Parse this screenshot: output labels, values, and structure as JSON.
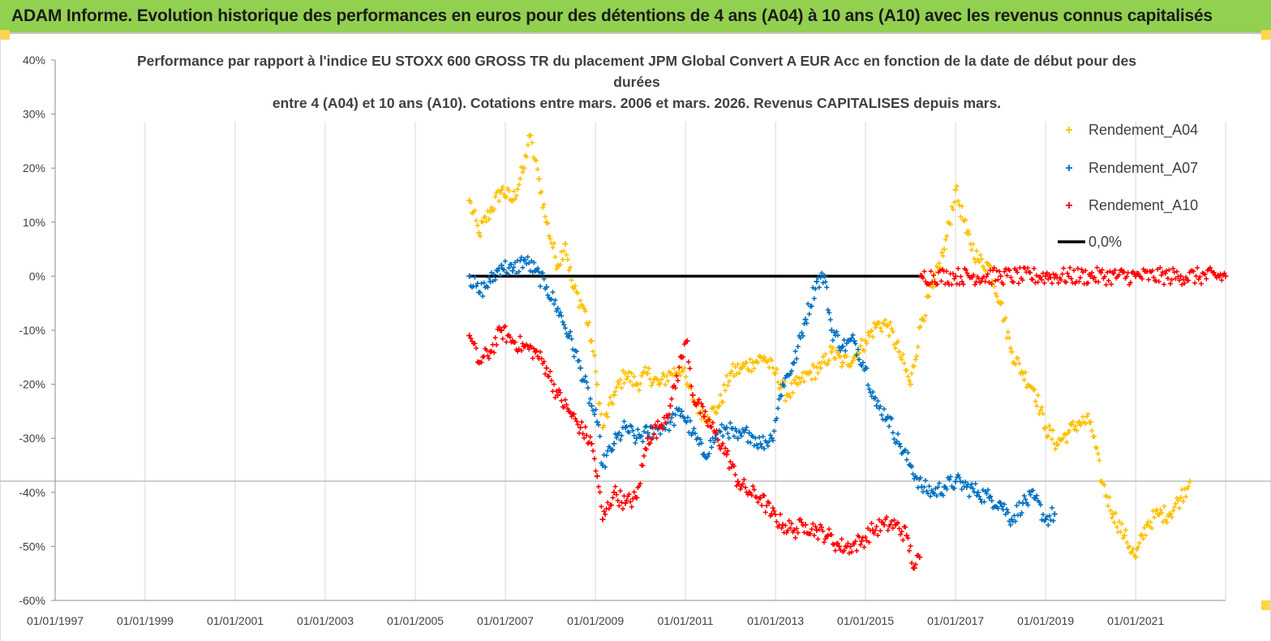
{
  "banner": {
    "title": "ADAM Informe. Evolution historique des performances en euros pour des détentions de 4 ans (A04) à 10 ans (A10) avec les revenus connus capitalisés"
  },
  "colors": {
    "banner_bg": "#92d050",
    "corner_marker": "#ffd54a",
    "A04": "#ffc000",
    "A07": "#0070c0",
    "A10": "#ff0000",
    "zero_line": "#000000",
    "gridline": "#d9d9d9"
  },
  "chart_data": {
    "type": "scatter",
    "title_lines": [
      "Performance par rapport à l'indice EU STOXX 600 GROSS TR  du placement JPM Global Convert A EUR Acc en fonction de la date de début pour des",
      "durées",
      "entre 4 (A04) et 10 ans (A10).  Cotations entre mars. 2006 et mars. 2026. Revenus CAPITALISES depuis mars."
    ],
    "xlabel": "",
    "ylabel": "",
    "x_type": "date",
    "xlim": [
      "1997-01-01",
      "2022-12-31"
    ],
    "ylim": [
      -60,
      40
    ],
    "x_tick_labels": [
      "01/01/1997",
      "01/01/1999",
      "01/01/2001",
      "01/01/2003",
      "01/01/2005",
      "01/01/2007",
      "01/01/2009",
      "01/01/2011",
      "01/01/2013",
      "01/01/2015",
      "01/01/2017",
      "01/01/2019",
      "01/01/2021"
    ],
    "y_ticks": [
      40,
      30,
      20,
      10,
      0,
      -10,
      -20,
      -30,
      -40,
      -50,
      -60
    ],
    "y_tick_labels": [
      "40%",
      "30%",
      "20%",
      "10%",
      "0%",
      "-10%",
      "-20%",
      "-30%",
      "-40%",
      "-50%",
      "-60%"
    ],
    "grid": {
      "vertical": true,
      "horizontal": false
    },
    "legend_position": "right",
    "legend": [
      "Rendement_A04",
      "Rendement_A07",
      "Rendement_A10",
      "0,0%"
    ],
    "series": [
      {
        "name": "Rendement_A04",
        "marker": "+",
        "points": [
          [
            "2006-03-15",
            14
          ],
          [
            "2006-06-01",
            8
          ],
          [
            "2006-09-01",
            12
          ],
          [
            "2006-12-01",
            16
          ],
          [
            "2007-03-01",
            14
          ],
          [
            "2007-06-01",
            20
          ],
          [
            "2007-07-15",
            26
          ],
          [
            "2007-10-01",
            18
          ],
          [
            "2007-12-01",
            10
          ],
          [
            "2008-03-01",
            2
          ],
          [
            "2008-05-01",
            6
          ],
          [
            "2008-07-01",
            -2
          ],
          [
            "2008-10-01",
            -6
          ],
          [
            "2008-12-01",
            -12
          ],
          [
            "2009-01-15",
            -20
          ],
          [
            "2009-03-01",
            -28
          ],
          [
            "2009-06-01",
            -22
          ],
          [
            "2009-09-01",
            -18
          ],
          [
            "2009-12-01",
            -20
          ],
          [
            "2010-03-01",
            -18
          ],
          [
            "2010-06-01",
            -20
          ],
          [
            "2010-09-01",
            -18
          ],
          [
            "2010-12-01",
            -17
          ],
          [
            "2011-01-15",
            -20
          ],
          [
            "2011-04-01",
            -24
          ],
          [
            "2011-07-01",
            -26
          ],
          [
            "2011-10-01",
            -24
          ],
          [
            "2012-01-01",
            -18
          ],
          [
            "2012-04-01",
            -17
          ],
          [
            "2012-07-01",
            -16
          ],
          [
            "2012-10-01",
            -15
          ],
          [
            "2013-01-01",
            -18
          ],
          [
            "2013-04-01",
            -22
          ],
          [
            "2013-07-01",
            -20
          ],
          [
            "2013-10-01",
            -18
          ],
          [
            "2014-01-01",
            -17
          ],
          [
            "2014-04-01",
            -14
          ],
          [
            "2014-07-01",
            -16
          ],
          [
            "2014-10-01",
            -15
          ],
          [
            "2015-01-01",
            -12
          ],
          [
            "2015-04-01",
            -9
          ],
          [
            "2015-07-01",
            -9
          ],
          [
            "2015-10-01",
            -14
          ],
          [
            "2016-01-01",
            -20
          ],
          [
            "2016-04-01",
            -8
          ],
          [
            "2016-07-01",
            -2
          ],
          [
            "2016-10-01",
            5
          ],
          [
            "2017-01-01",
            16
          ],
          [
            "2017-04-01",
            8
          ],
          [
            "2017-07-01",
            3
          ],
          [
            "2017-10-01",
            2
          ],
          [
            "2018-01-01",
            -5
          ],
          [
            "2018-04-01",
            -14
          ],
          [
            "2018-07-01",
            -18
          ],
          [
            "2018-10-01",
            -21
          ],
          [
            "2019-01-01",
            -28
          ],
          [
            "2019-04-01",
            -31
          ],
          [
            "2019-07-01",
            -29
          ],
          [
            "2019-10-01",
            -27
          ],
          [
            "2020-01-01",
            -27
          ],
          [
            "2020-04-01",
            -38
          ],
          [
            "2020-07-01",
            -44
          ],
          [
            "2020-10-01",
            -48
          ],
          [
            "2021-01-01",
            -52
          ],
          [
            "2021-04-01",
            -46
          ],
          [
            "2021-07-01",
            -44
          ],
          [
            "2021-10-01",
            -44
          ],
          [
            "2022-01-01",
            -41
          ],
          [
            "2022-03-15",
            -38
          ]
        ]
      },
      {
        "name": "Rendement_A07",
        "marker": "+",
        "points": [
          [
            "2006-03-15",
            0
          ],
          [
            "2006-06-01",
            -3
          ],
          [
            "2006-09-01",
            -1
          ],
          [
            "2006-12-01",
            2
          ],
          [
            "2007-03-01",
            1
          ],
          [
            "2007-06-01",
            3
          ],
          [
            "2007-09-01",
            1
          ],
          [
            "2007-12-01",
            -2
          ],
          [
            "2008-03-01",
            -6
          ],
          [
            "2008-06-01",
            -11
          ],
          [
            "2008-09-01",
            -17
          ],
          [
            "2008-12-01",
            -24
          ],
          [
            "2009-01-15",
            -27
          ],
          [
            "2009-03-01",
            -35
          ],
          [
            "2009-06-01",
            -31
          ],
          [
            "2009-09-01",
            -28
          ],
          [
            "2009-12-01",
            -30
          ],
          [
            "2010-03-01",
            -29
          ],
          [
            "2010-06-01",
            -28
          ],
          [
            "2010-09-01",
            -27
          ],
          [
            "2010-12-01",
            -25
          ],
          [
            "2011-03-01",
            -29
          ],
          [
            "2011-06-01",
            -33
          ],
          [
            "2011-09-01",
            -30
          ],
          [
            "2011-12-01",
            -28
          ],
          [
            "2012-03-01",
            -30
          ],
          [
            "2012-06-01",
            -29
          ],
          [
            "2012-09-01",
            -31
          ],
          [
            "2012-12-01",
            -30
          ],
          [
            "2013-03-01",
            -20
          ],
          [
            "2013-06-01",
            -16
          ],
          [
            "2013-09-01",
            -8
          ],
          [
            "2013-12-01",
            -1
          ],
          [
            "2014-02-01",
            0
          ],
          [
            "2014-04-01",
            -10
          ],
          [
            "2014-07-01",
            -13
          ],
          [
            "2014-10-01",
            -12
          ],
          [
            "2015-01-01",
            -17
          ],
          [
            "2015-04-01",
            -24
          ],
          [
            "2015-07-01",
            -26
          ],
          [
            "2015-10-01",
            -31
          ],
          [
            "2016-01-01",
            -35
          ],
          [
            "2016-04-01",
            -39
          ],
          [
            "2016-07-01",
            -40
          ],
          [
            "2016-10-01",
            -39
          ],
          [
            "2017-01-01",
            -38
          ],
          [
            "2017-04-01",
            -39
          ],
          [
            "2017-07-01",
            -40
          ],
          [
            "2017-10-01",
            -41
          ],
          [
            "2018-01-01",
            -42
          ],
          [
            "2018-04-01",
            -45
          ],
          [
            "2018-07-01",
            -42
          ],
          [
            "2018-10-01",
            -41
          ],
          [
            "2019-01-01",
            -45
          ],
          [
            "2019-03-15",
            -44
          ]
        ]
      },
      {
        "name": "Rendement_A10",
        "marker": "+",
        "points": [
          [
            "2006-03-15",
            -11
          ],
          [
            "2006-06-01",
            -16
          ],
          [
            "2006-09-01",
            -14
          ],
          [
            "2006-12-01",
            -10
          ],
          [
            "2007-03-01",
            -12
          ],
          [
            "2007-06-01",
            -13
          ],
          [
            "2007-09-01",
            -14
          ],
          [
            "2007-12-01",
            -17
          ],
          [
            "2008-03-01",
            -22
          ],
          [
            "2008-06-01",
            -25
          ],
          [
            "2008-09-01",
            -28
          ],
          [
            "2008-12-01",
            -31
          ],
          [
            "2009-01-15",
            -37
          ],
          [
            "2009-03-01",
            -45
          ],
          [
            "2009-06-01",
            -40
          ],
          [
            "2009-09-01",
            -42
          ],
          [
            "2009-12-01",
            -41
          ],
          [
            "2010-03-01",
            -30
          ],
          [
            "2010-06-01",
            -28
          ],
          [
            "2010-09-01",
            -24
          ],
          [
            "2010-12-01",
            -15
          ],
          [
            "2011-01-15",
            -12
          ],
          [
            "2011-03-01",
            -22
          ],
          [
            "2011-06-01",
            -26
          ],
          [
            "2011-09-01",
            -29
          ],
          [
            "2011-12-01",
            -33
          ],
          [
            "2012-03-01",
            -38
          ],
          [
            "2012-06-01",
            -40
          ],
          [
            "2012-09-01",
            -41
          ],
          [
            "2012-12-01",
            -44
          ],
          [
            "2013-03-01",
            -46
          ],
          [
            "2013-06-01",
            -47
          ],
          [
            "2013-09-01",
            -46
          ],
          [
            "2013-12-01",
            -47
          ],
          [
            "2014-03-01",
            -48
          ],
          [
            "2014-06-01",
            -50
          ],
          [
            "2014-09-01",
            -50
          ],
          [
            "2014-12-01",
            -49
          ],
          [
            "2015-03-01",
            -47
          ],
          [
            "2015-06-01",
            -46
          ],
          [
            "2015-09-01",
            -46
          ],
          [
            "2015-12-01",
            -48
          ],
          [
            "2016-02-01",
            -54
          ],
          [
            "2016-03-15",
            -52
          ],
          [
            "2016-04-01",
            0
          ],
          [
            "2017-01-01",
            0
          ],
          [
            "2018-01-01",
            0
          ],
          [
            "2019-01-01",
            0
          ],
          [
            "2020-01-01",
            0
          ],
          [
            "2021-01-01",
            0
          ],
          [
            "2022-01-01",
            0
          ],
          [
            "2022-12-31",
            0
          ]
        ]
      }
    ],
    "reference_line": {
      "name": "0,0%",
      "value": 0,
      "x_from": "2006-03-15",
      "x_to": "2016-04-01"
    }
  }
}
